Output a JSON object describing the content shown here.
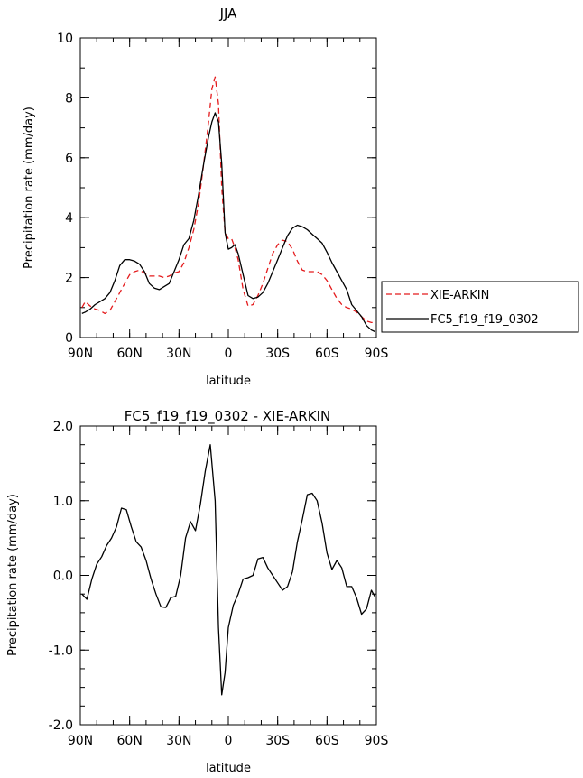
{
  "chart_data": [
    {
      "type": "line",
      "title": "JJA",
      "xlabel": "latitude",
      "ylabel": "Precipitation rate (mm/day)",
      "xlim": [
        90,
        -90
      ],
      "ylim": [
        0,
        10
      ],
      "x_ticks": [
        90,
        60,
        30,
        0,
        -30,
        -60,
        -90
      ],
      "x_tick_labels": [
        "90N",
        "60N",
        "30N",
        "0",
        "30S",
        "60S",
        "90S"
      ],
      "y_ticks": [
        0,
        2,
        4,
        6,
        8,
        10
      ],
      "y_tick_labels": [
        "0",
        "2",
        "4",
        "6",
        "8",
        "10"
      ],
      "grid": false,
      "legend_position": "right",
      "series": [
        {
          "name": "XIE-ARKIN",
          "color": "#e41a1c",
          "dash": "dashed",
          "x": [
            89,
            87,
            84,
            81,
            78,
            75,
            72,
            69,
            66,
            63,
            60,
            57,
            54,
            51,
            48,
            45,
            42,
            39,
            36,
            33,
            30,
            27,
            24,
            21,
            18,
            15,
            12,
            10,
            8,
            6,
            4,
            2,
            0,
            -2,
            -4,
            -6,
            -9,
            -12,
            -15,
            -18,
            -21,
            -24,
            -27,
            -30,
            -33,
            -36,
            -39,
            -42,
            -45,
            -48,
            -51,
            -54,
            -57,
            -60,
            -63,
            -66,
            -69,
            -72,
            -75,
            -78,
            -81,
            -84,
            -87,
            -89
          ],
          "y": [
            1.0,
            1.2,
            1.05,
            0.95,
            0.9,
            0.8,
            0.9,
            1.2,
            1.5,
            1.8,
            2.1,
            2.2,
            2.25,
            2.15,
            2.05,
            2.05,
            2.05,
            2.0,
            2.05,
            2.15,
            2.2,
            2.5,
            3.0,
            3.6,
            4.5,
            5.8,
            7.2,
            8.3,
            8.7,
            7.8,
            5.0,
            3.5,
            3.3,
            3.3,
            3.0,
            2.6,
            1.6,
            1.05,
            1.1,
            1.4,
            1.8,
            2.3,
            2.8,
            3.1,
            3.25,
            3.2,
            2.95,
            2.55,
            2.25,
            2.2,
            2.2,
            2.2,
            2.1,
            1.9,
            1.6,
            1.3,
            1.1,
            1.0,
            0.95,
            0.85,
            0.7,
            0.55,
            0.5,
            0.5
          ]
        },
        {
          "name": "FC5_f19_f19_0302",
          "color": "#000000",
          "dash": "solid",
          "x": [
            89,
            87,
            84,
            81,
            78,
            75,
            72,
            69,
            66,
            63,
            60,
            57,
            54,
            51,
            48,
            45,
            42,
            39,
            36,
            33,
            30,
            27,
            24,
            21,
            18,
            15,
            12,
            10,
            8,
            6,
            4,
            2,
            0,
            -2,
            -4,
            -6,
            -9,
            -12,
            -15,
            -18,
            -21,
            -24,
            -27,
            -30,
            -33,
            -36,
            -39,
            -42,
            -45,
            -48,
            -51,
            -54,
            -57,
            -60,
            -63,
            -66,
            -69,
            -72,
            -75,
            -78,
            -81,
            -84,
            -87,
            -89
          ],
          "y": [
            0.8,
            0.85,
            0.95,
            1.1,
            1.2,
            1.3,
            1.5,
            1.9,
            2.4,
            2.6,
            2.6,
            2.55,
            2.45,
            2.2,
            1.8,
            1.65,
            1.6,
            1.7,
            1.8,
            2.2,
            2.6,
            3.1,
            3.3,
            3.9,
            4.8,
            5.8,
            6.7,
            7.2,
            7.5,
            7.2,
            5.8,
            3.5,
            2.95,
            3.0,
            3.1,
            2.8,
            2.1,
            1.4,
            1.3,
            1.35,
            1.5,
            1.8,
            2.2,
            2.6,
            3.0,
            3.4,
            3.65,
            3.75,
            3.7,
            3.6,
            3.45,
            3.3,
            3.15,
            2.85,
            2.5,
            2.2,
            1.9,
            1.6,
            1.1,
            0.9,
            0.7,
            0.4,
            0.25,
            0.2
          ]
        }
      ]
    },
    {
      "type": "line",
      "title": "FC5_f19_f19_0302 - XIE-ARKIN",
      "xlabel": "latitude",
      "ylabel": "Precipitation rate (mm/day)",
      "xlim": [
        90,
        -90
      ],
      "ylim": [
        -2,
        2
      ],
      "x_ticks": [
        90,
        60,
        30,
        0,
        -30,
        -60,
        -90
      ],
      "x_tick_labels": [
        "90N",
        "60N",
        "30N",
        "0",
        "30S",
        "60S",
        "90S"
      ],
      "y_ticks": [
        -2,
        -1,
        0,
        1,
        2
      ],
      "y_tick_labels": [
        "-2.0",
        "-1.0",
        "0.0",
        "1.0",
        "2.0"
      ],
      "grid": false,
      "series": [
        {
          "color": "#000000",
          "dash": "solid",
          "x": [
            89,
            86,
            83,
            80,
            77,
            74,
            71,
            68,
            65,
            62,
            59,
            56,
            53,
            50,
            47,
            44,
            41,
            38,
            35,
            32,
            29,
            26,
            23,
            20,
            17,
            14,
            11,
            8,
            6,
            4,
            2,
            0,
            -3,
            -6,
            -9,
            -12,
            -15,
            -18,
            -21,
            -24,
            -27,
            -30,
            -33,
            -36,
            -39,
            -42,
            -45,
            -48,
            -51,
            -54,
            -57,
            -60,
            -63,
            -66,
            -69,
            -72,
            -75,
            -78,
            -81,
            -84,
            -87,
            -89
          ],
          "y": [
            -0.25,
            -0.32,
            -0.05,
            0.15,
            0.25,
            0.4,
            0.5,
            0.65,
            0.9,
            0.88,
            0.65,
            0.45,
            0.38,
            0.2,
            -0.05,
            -0.25,
            -0.42,
            -0.43,
            -0.3,
            -0.28,
            0.0,
            0.5,
            0.72,
            0.6,
            0.95,
            1.4,
            1.75,
            1.0,
            -0.7,
            -1.6,
            -1.3,
            -0.7,
            -0.4,
            -0.25,
            -0.05,
            -0.03,
            0.0,
            0.22,
            0.24,
            0.1,
            0.0,
            -0.1,
            -0.2,
            -0.15,
            0.05,
            0.45,
            0.75,
            1.08,
            1.1,
            1.0,
            0.7,
            0.3,
            0.08,
            0.2,
            0.1,
            -0.15,
            -0.15,
            -0.3,
            -0.52,
            -0.45,
            -0.2,
            -0.28
          ]
        }
      ]
    }
  ]
}
